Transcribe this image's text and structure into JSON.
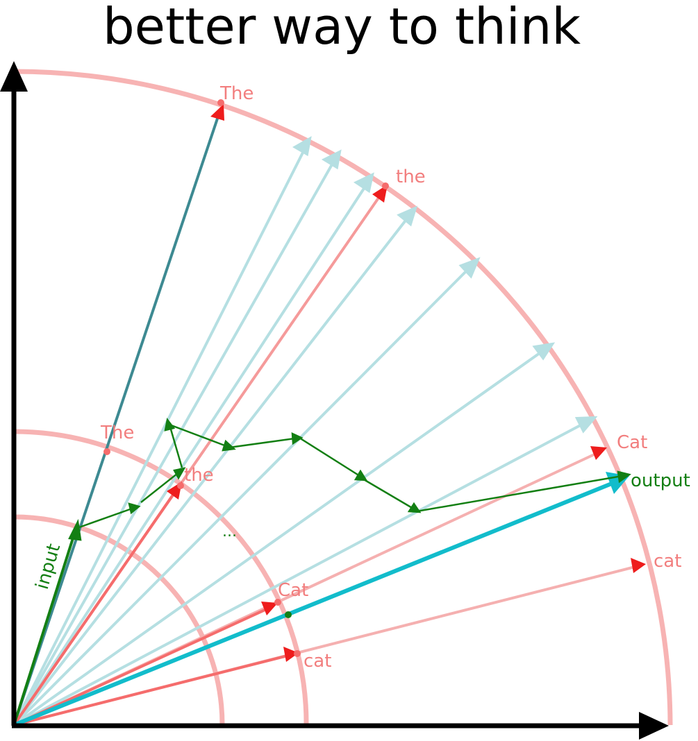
{
  "title": "better way to think",
  "colors": {
    "axis": "#000000",
    "circle": "#f6a6a6",
    "word_point": "#f56c6c",
    "word_arrow": "#ee1c1c",
    "word_line": "#f59a9a",
    "faded_line": "#b5dfe2",
    "dark_line": "#3d8a92",
    "cyan": "#12bccb",
    "green": "#137f13",
    "label_red": "#f27e7e"
  },
  "labels": {
    "the_cap_outer": "The",
    "the_outer": "the",
    "cat_cap_outer": "Cat",
    "cat_outer": "cat",
    "the_cap_mid": "The",
    "the_mid": "the",
    "cat_cap_mid": "Cat",
    "cat_mid": "cat",
    "output": "output",
    "input": "input",
    "dots": "..."
  }
}
